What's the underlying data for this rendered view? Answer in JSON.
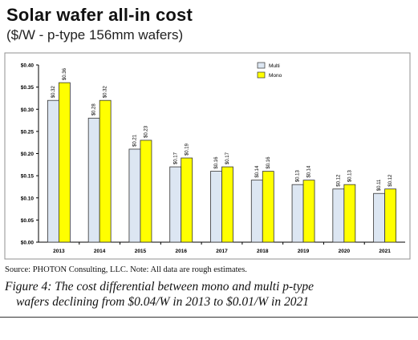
{
  "title": "Solar wafer all-in cost",
  "subtitle": "($/W - p-type 156mm wafers)",
  "source": "Source: PHOTON Consulting, LLC. Note: All data are rough estimates.",
  "caption": {
    "line1": "Figure 4: The cost differential between mono and multi p-type",
    "line2": "wafers declining from $0.04/W in 2013 to $0.01/W in 2021"
  },
  "colors": {
    "multi": "#dce6f2",
    "mono": "#ffff00",
    "bar_stroke": "#333333",
    "plot_border": "#808080"
  },
  "chart_data": {
    "type": "bar",
    "title": "",
    "xlabel": "",
    "ylabel": "",
    "categories": [
      "2013",
      "2014",
      "2015",
      "2016",
      "2017",
      "2018",
      "2019",
      "2020",
      "2021"
    ],
    "series": [
      {
        "name": "Multi",
        "values": [
          0.32,
          0.28,
          0.21,
          0.17,
          0.16,
          0.14,
          0.13,
          0.12,
          0.11
        ],
        "labels": [
          "$0.32",
          "$0.28",
          "$0.21",
          "$0.17",
          "$0.16",
          "$0.14",
          "$0.13",
          "$0.12",
          "$0.11"
        ]
      },
      {
        "name": "Mono",
        "values": [
          0.36,
          0.32,
          0.23,
          0.19,
          0.17,
          0.16,
          0.14,
          0.13,
          0.12
        ],
        "labels": [
          "$0.36",
          "$0.32",
          "$0.23",
          "$0.19",
          "$0.17",
          "$0.16",
          "$0.14",
          "$0.13",
          "$0.12"
        ]
      }
    ],
    "ylim": [
      0,
      0.4
    ],
    "yticks": [
      0,
      0.05,
      0.1,
      0.15,
      0.2,
      0.25,
      0.3,
      0.35,
      0.4
    ],
    "ytick_labels": [
      "$0.00",
      "$0.05",
      "$0.10",
      "$0.15",
      "$0.20",
      "$0.25",
      "$0.30",
      "$0.35",
      "$0.40"
    ],
    "grid": false,
    "legend": "top-right"
  }
}
